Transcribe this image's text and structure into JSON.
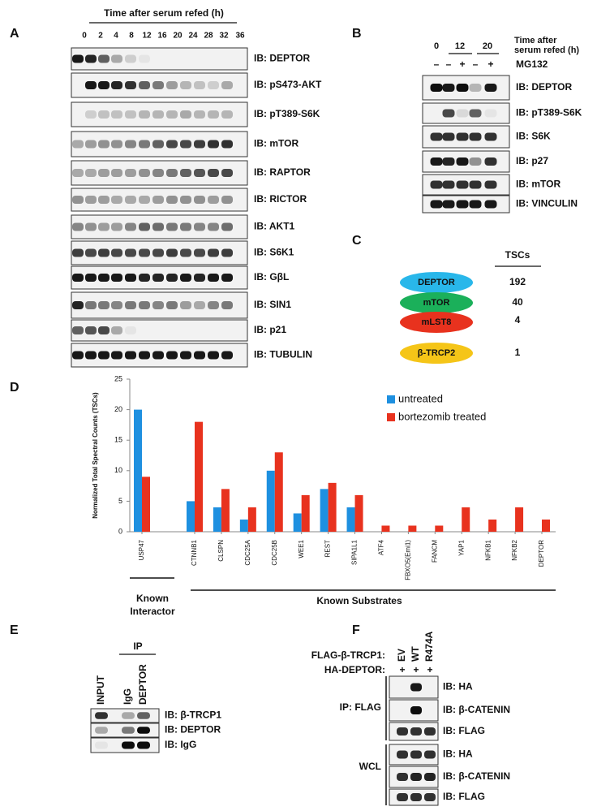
{
  "panel_a": {
    "label": "A",
    "title": "Time after serum refed (h)",
    "lanes": [
      "0",
      "2",
      "4",
      "8",
      "12",
      "16",
      "20",
      "24",
      "28",
      "32",
      "36"
    ],
    "blots": [
      "IB: DEPTOR",
      "IB: pS473-AKT",
      "IB: pT389-S6K",
      "IB: mTOR",
      "IB: RAPTOR",
      "IB: RICTOR",
      "IB: AKT1",
      "IB: S6K1",
      "IB: GβL",
      "IB: SIN1",
      "IB: p21",
      "IB: TUBULIN"
    ]
  },
  "panel_b": {
    "label": "B",
    "lanes": [
      "0",
      "12",
      "20"
    ],
    "time_label": [
      "Time after",
      "serum refed (h)"
    ],
    "treatment": "MG132",
    "treatment_marks": [
      "–",
      "–",
      "+",
      "–",
      "+"
    ],
    "blots": [
      "IB: DEPTOR",
      "IB: pT389-S6K",
      "IB: S6K",
      "IB: p27",
      "IB: mTOR",
      "IB: VINCULIN"
    ]
  },
  "panel_c": {
    "label": "C",
    "column_header": "TSCs",
    "proteins": [
      {
        "name": "DEPTOR",
        "tscs": 192
      },
      {
        "name": "mTOR",
        "tscs": 40
      },
      {
        "name": "mLST8",
        "tscs": 4
      },
      {
        "name": "β-TRCP2",
        "tscs": 1
      }
    ]
  },
  "chart_data": {
    "type": "bar",
    "label": "D",
    "ylabel": "Normalized Total Spectral Counts (TSCs)",
    "categories": [
      "USP47",
      "CTNNB1",
      "CLSPN",
      "CDC25A",
      "CDC25B",
      "WEE1",
      "REST",
      "SIPA1L1",
      "ATF4",
      "FBXO5(Emi1)",
      "FANCM",
      "YAP1",
      "NFKB1",
      "NFKB2",
      "DEPTOR"
    ],
    "series": [
      {
        "name": "untreated",
        "color": "#1e90e0",
        "values": [
          20,
          5,
          4,
          2,
          10,
          3,
          7,
          4,
          0,
          0,
          0,
          0,
          0,
          0,
          0
        ]
      },
      {
        "name": "bortezomib treated",
        "color": "#e8321e",
        "values": [
          9,
          18,
          7,
          4,
          13,
          6,
          8,
          6,
          1,
          1,
          1,
          4,
          2,
          4,
          2
        ]
      }
    ],
    "ylim": [
      0,
      25
    ],
    "yticks": [
      0,
      5,
      10,
      15,
      20,
      25
    ],
    "grid": false,
    "legend": "upper right",
    "groups": [
      {
        "lines": [
          "Known",
          "Interactor"
        ]
      },
      {
        "lines": [
          "Known Substrates"
        ]
      }
    ]
  },
  "panel_e": {
    "label": "E",
    "ip": "IP",
    "lanes": [
      "INPUT",
      "IgG",
      "DEPTOR"
    ],
    "blots": [
      "IB: β-TRCP1",
      "IB: DEPTOR",
      "IB: IgG"
    ]
  },
  "panel_f": {
    "label": "F",
    "construct": "FLAG-β-TRCP1:",
    "lanes": [
      "EV",
      "WT",
      "R474A"
    ],
    "ha_label": "HA-DEPTOR:",
    "ha_marks": [
      "+",
      "+",
      "+"
    ],
    "groups": [
      {
        "label": "IP: FLAG",
        "blots": [
          "IB: HA",
          "IB: β-CATENIN",
          "IB: FLAG"
        ]
      },
      {
        "label": "WCL",
        "blots": [
          "IB: HA",
          "IB: β-CATENIN",
          "IB: FLAG"
        ]
      }
    ]
  }
}
